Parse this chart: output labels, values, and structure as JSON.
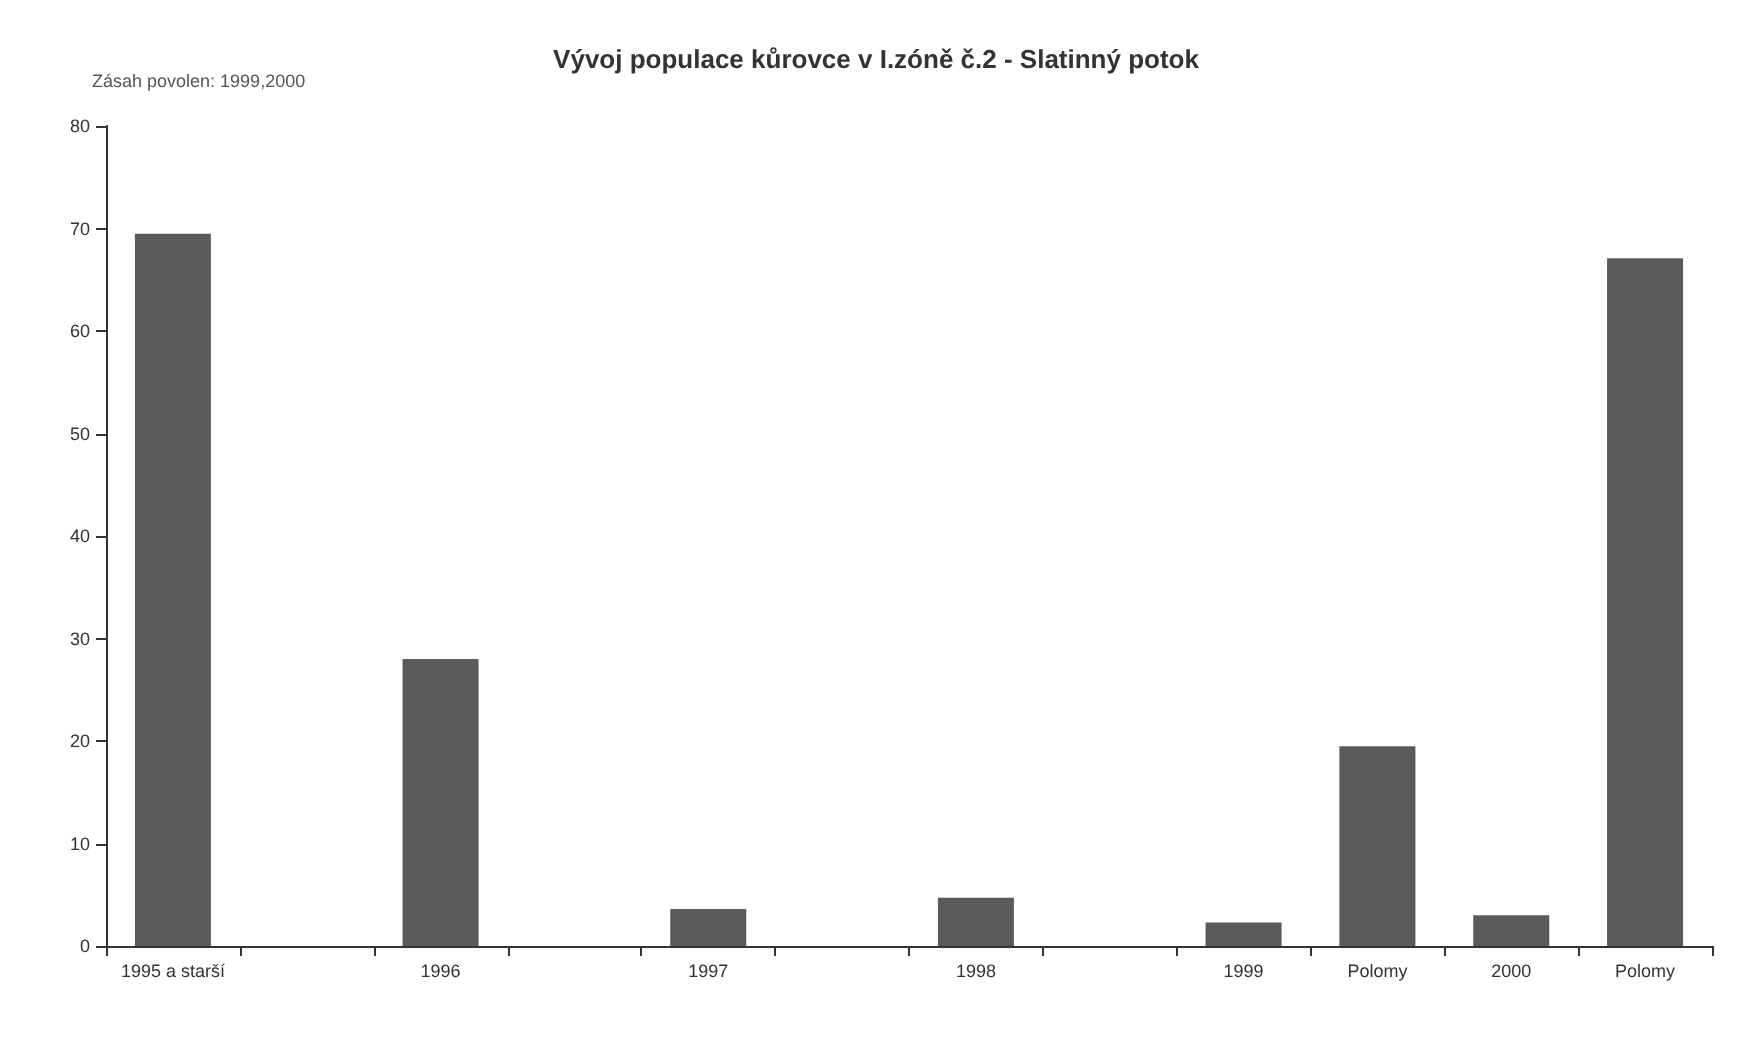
{
  "chart_data": {
    "type": "bar",
    "title": "Vývoj populace kůrovce v I.zóně č.2 - Slatinný potok",
    "annotations": [
      "Zásah povolen: 1999,2000"
    ],
    "categories": [
      "1995 a starší",
      null,
      "1996",
      null,
      "1997",
      null,
      "1998",
      null,
      "1999",
      "Polomy",
      "2000",
      "Polomy"
    ],
    "values": [
      69.5,
      null,
      28,
      null,
      3.6,
      null,
      4.7,
      null,
      2.3,
      19.5,
      3,
      67.1
    ],
    "color": "#5a5a5a",
    "ylim": [
      0,
      80
    ],
    "yticks": [
      0,
      10,
      20,
      30,
      40,
      50,
      60,
      70,
      80
    ],
    "grid": false
  }
}
